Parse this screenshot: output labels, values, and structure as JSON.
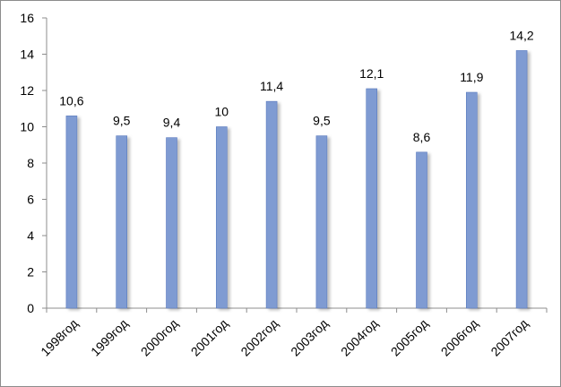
{
  "chart_data": {
    "type": "bar",
    "title": "",
    "xlabel": "",
    "ylabel": "",
    "categories": [
      "1998год",
      "1999год",
      "2000год",
      "2001год",
      "2002год",
      "2003год",
      "2004год",
      "2005год",
      "2006год",
      "2007год"
    ],
    "values": [
      10.6,
      9.5,
      9.4,
      10,
      11.4,
      9.5,
      12.1,
      8.6,
      11.9,
      14.2
    ],
    "data_labels": [
      "10,6",
      "9,5",
      "9,4",
      "10",
      "11,4",
      "9,5",
      "12,1",
      "8,6",
      "11,9",
      "14,2"
    ],
    "ylim": [
      0,
      16
    ],
    "yticks": [
      0,
      2,
      4,
      6,
      8,
      10,
      12,
      14,
      16
    ],
    "grid": false,
    "legend": "none",
    "bar_color": "#7f9bd2",
    "bar_edge_color": "#5a7bbf",
    "axis_color": "#8c8c8c"
  }
}
